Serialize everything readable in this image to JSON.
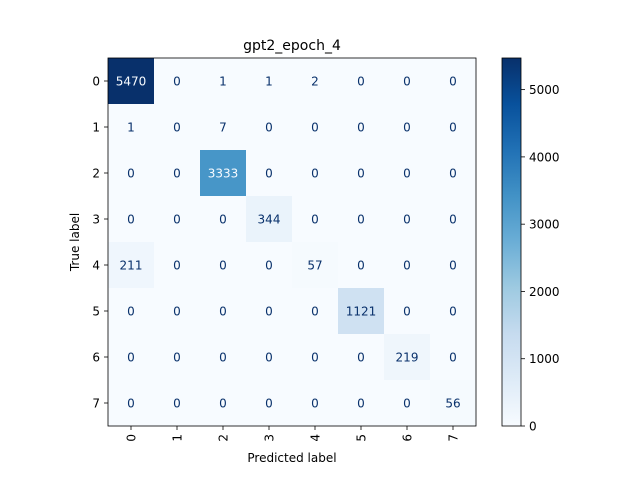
{
  "chart_data": {
    "type": "heatmap",
    "title": "gpt2_epoch_4",
    "xlabel": "Predicted label",
    "ylabel": "True label",
    "x_categories": [
      "0",
      "1",
      "2",
      "3",
      "4",
      "5",
      "6",
      "7"
    ],
    "y_categories": [
      "0",
      "1",
      "2",
      "3",
      "4",
      "5",
      "6",
      "7"
    ],
    "values": [
      [
        5470,
        0,
        1,
        1,
        2,
        0,
        0,
        0
      ],
      [
        1,
        0,
        7,
        0,
        0,
        0,
        0,
        0
      ],
      [
        0,
        0,
        3333,
        0,
        0,
        0,
        0,
        0
      ],
      [
        0,
        0,
        0,
        344,
        0,
        0,
        0,
        0
      ],
      [
        211,
        0,
        0,
        0,
        57,
        0,
        0,
        0
      ],
      [
        0,
        0,
        0,
        0,
        0,
        1121,
        0,
        0
      ],
      [
        0,
        0,
        0,
        0,
        0,
        0,
        219,
        0
      ],
      [
        0,
        0,
        0,
        0,
        0,
        0,
        0,
        56
      ]
    ],
    "colormap": "Blues",
    "colorbar": {
      "range": [
        0,
        5470
      ],
      "ticks": [
        0,
        1000,
        2000,
        3000,
        4000,
        5000
      ]
    },
    "x_tick_rotation": "vertical",
    "grid": false
  }
}
